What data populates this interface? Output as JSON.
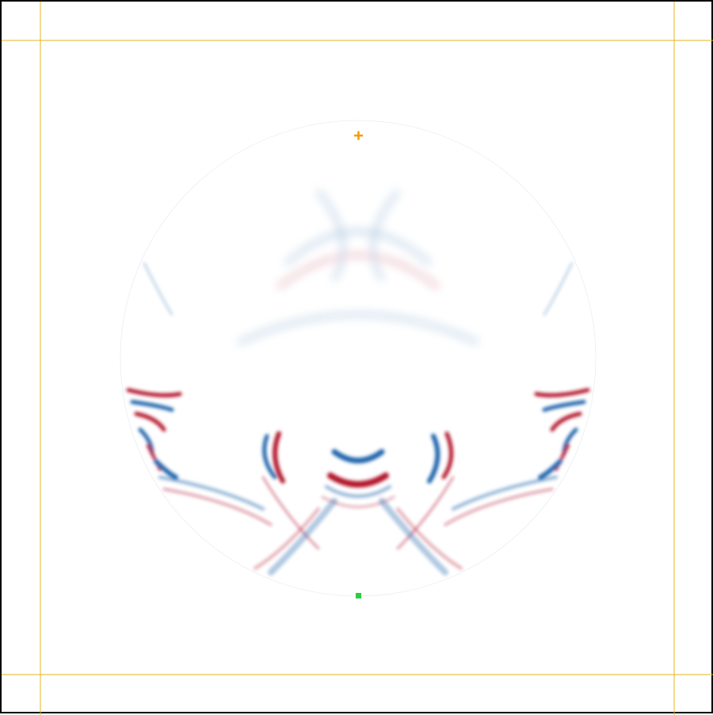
{
  "simulation": {
    "field_colormap": {
      "positive": "#b2182b",
      "negative": "#2166ac",
      "zero": "#ffffff"
    },
    "frame_color": "#000000",
    "guide_line_color": "#e6b422",
    "source_marker": {
      "icon": "plus-icon",
      "color": "#f39c12"
    },
    "receiver_marker": {
      "icon": "square-icon",
      "color": "#2ecc40"
    }
  }
}
